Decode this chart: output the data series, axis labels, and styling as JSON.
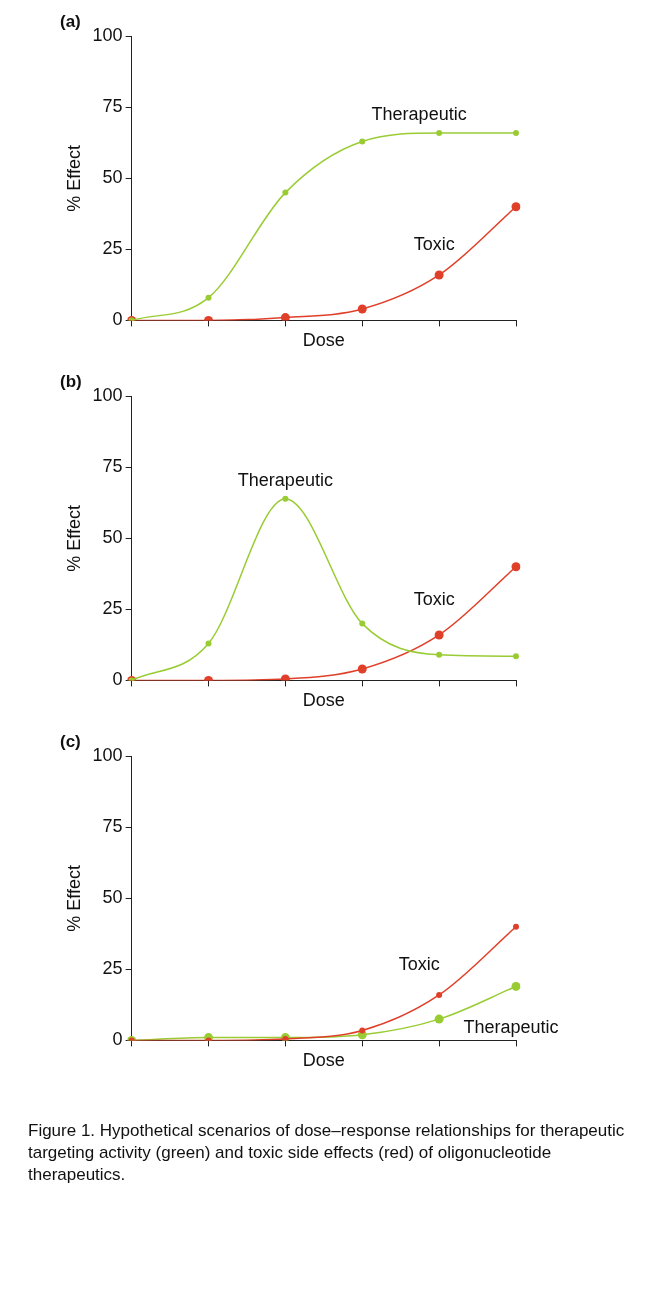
{
  "chart_data": [
    {
      "type": "line",
      "title": "(a)",
      "xlabel": "Dose",
      "ylabel": "% Effect",
      "categories": [
        null,
        null,
        null,
        null,
        null,
        null
      ],
      "series": [
        {
          "name": "Therapeutic",
          "color": "#99cc33",
          "values": [
            0,
            8,
            45,
            63,
            66,
            66
          ]
        },
        {
          "name": "Toxic",
          "color": "#e0402a",
          "values": [
            0,
            0,
            1,
            4,
            16,
            40
          ]
        }
      ],
      "ylim": [
        0,
        100
      ],
      "yticks": [
        0,
        25,
        50,
        75,
        100
      ],
      "grid": false,
      "legend": false,
      "tick_labels": "y",
      "marker": "circle",
      "line_style": "solid"
    },
    {
      "type": "line",
      "title": "(b)",
      "xlabel": "Dose",
      "ylabel": "% Effect",
      "categories": [
        null,
        null,
        null,
        null,
        null,
        null
      ],
      "series": [
        {
          "name": "Therapeutic",
          "color": "#99cc33",
          "values": [
            0,
            13,
            64,
            20,
            9,
            8.5
          ]
        },
        {
          "name": "Toxic",
          "color": "#e0402a",
          "values": [
            0,
            0,
            0.5,
            4,
            16,
            40
          ]
        }
      ],
      "ylim": [
        0,
        100
      ],
      "yticks": [
        0,
        25,
        50,
        75,
        100
      ],
      "grid": false,
      "legend": false,
      "tick_labels": "y",
      "marker": "circle",
      "line_style": "solid"
    },
    {
      "type": "line",
      "title": "(c)",
      "xlabel": "Dose",
      "ylabel": "% Effect",
      "categories": [
        null,
        null,
        null,
        null,
        null,
        null
      ],
      "series": [
        {
          "name": "Toxic",
          "color": "#e0402a",
          "values": [
            0,
            0,
            0.5,
            3.5,
            16,
            40
          ]
        },
        {
          "name": "Therapeutic",
          "color": "#99cc33",
          "values": [
            0,
            1,
            1,
            2,
            7.5,
            19
          ]
        }
      ],
      "ylim": [
        0,
        100
      ],
      "yticks": [
        0,
        25,
        50,
        75,
        100
      ],
      "grid": false,
      "legend": false,
      "tick_labels": "y",
      "marker": "circle",
      "line_style": "solid",
      "annotations": [
        "Figure 1. Hypothetical scenarios of dose–response relationships for therapeutic targeting activity (green) and toxic side effects (red) of oligonucleotide therapeutics."
      ]
    }
  ]
}
